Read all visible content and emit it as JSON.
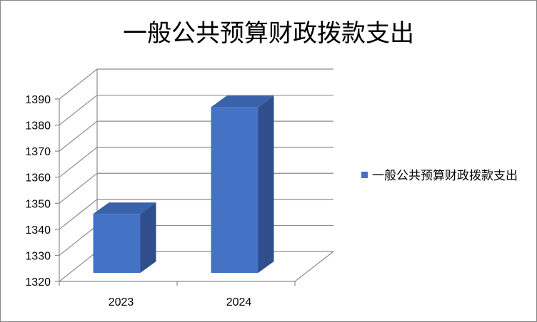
{
  "chart_data": {
    "type": "bar",
    "title": "一般公共预算财政拨款支出",
    "categories": [
      "2023",
      "2024"
    ],
    "series": [
      {
        "name": "一般公共预算财政拨款支出",
        "values": [
          1347,
          1388
        ]
      }
    ],
    "ylim": [
      1320,
      1390
    ],
    "yticks": [
      1320,
      1330,
      1340,
      1350,
      1360,
      1370,
      1380,
      1390
    ],
    "grid": true,
    "legend_position": "right",
    "colors": {
      "front": "#4472C4",
      "side": "#2F4E8B",
      "top": "#3A62AA",
      "grid": "#8C8C8C"
    }
  }
}
